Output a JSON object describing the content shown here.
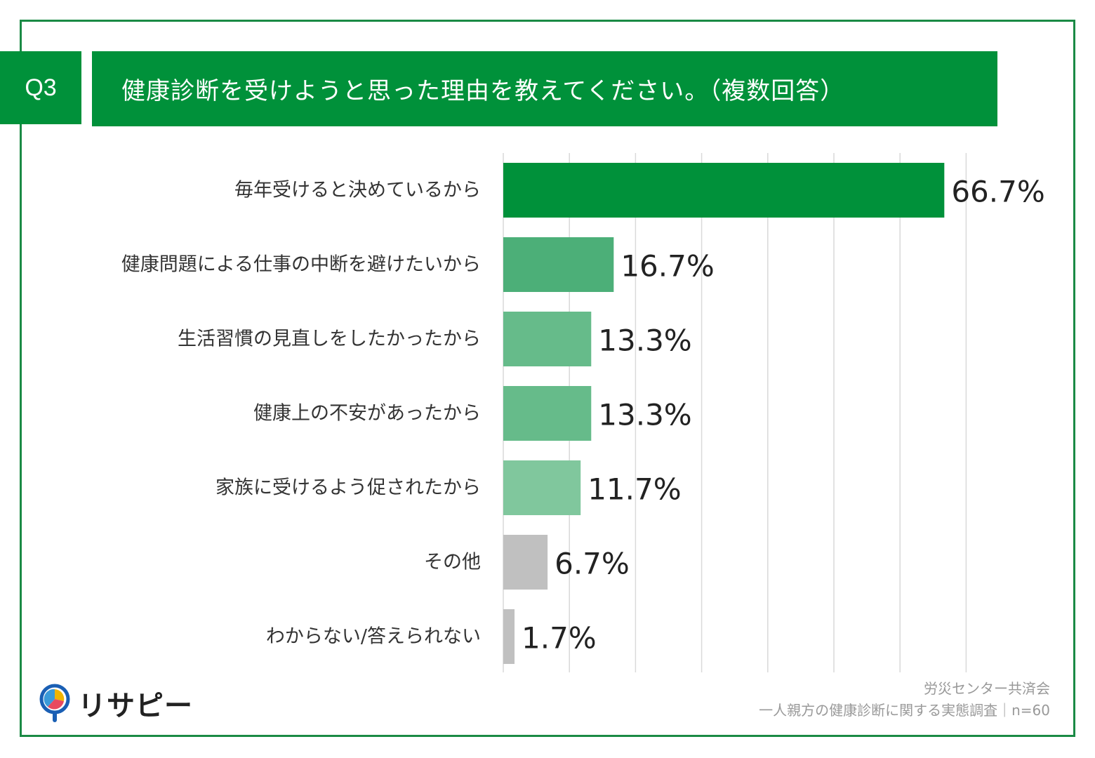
{
  "question": {
    "number": "Q3",
    "title": "健康診断を受けようと思った理由を教えてください。（複数回答）"
  },
  "chart_data": {
    "type": "bar",
    "orientation": "horizontal",
    "categories": [
      "毎年受けると決めているから",
      "健康問題による仕事の中断を避けたいから",
      "生活習慣の見直しをしたかったから",
      "健康上の不安があったから",
      "家族に受けるよう促されたから",
      "その他",
      "わからない/答えられない"
    ],
    "values": [
      66.7,
      16.7,
      13.3,
      13.3,
      11.7,
      6.7,
      1.7
    ],
    "value_labels": [
      "66.7%",
      "16.7%",
      "13.3%",
      "13.3%",
      "11.7%",
      "6.7%",
      "1.7%"
    ],
    "bar_colors": [
      "#00913a",
      "#4caf78",
      "#66bb8a",
      "#66bb8a",
      "#80c79d",
      "#c0c0c0",
      "#c0c0c0"
    ],
    "xlim": [
      0,
      70
    ],
    "grid": true
  },
  "source": {
    "line1": "労災センター共済会",
    "line2": "一人親方の健康診断に関する実態調査｜n=60"
  },
  "logo": {
    "name": "リサピー"
  },
  "colors": {
    "brand_green": "#00913a",
    "frame_border": "#1a8a45"
  }
}
